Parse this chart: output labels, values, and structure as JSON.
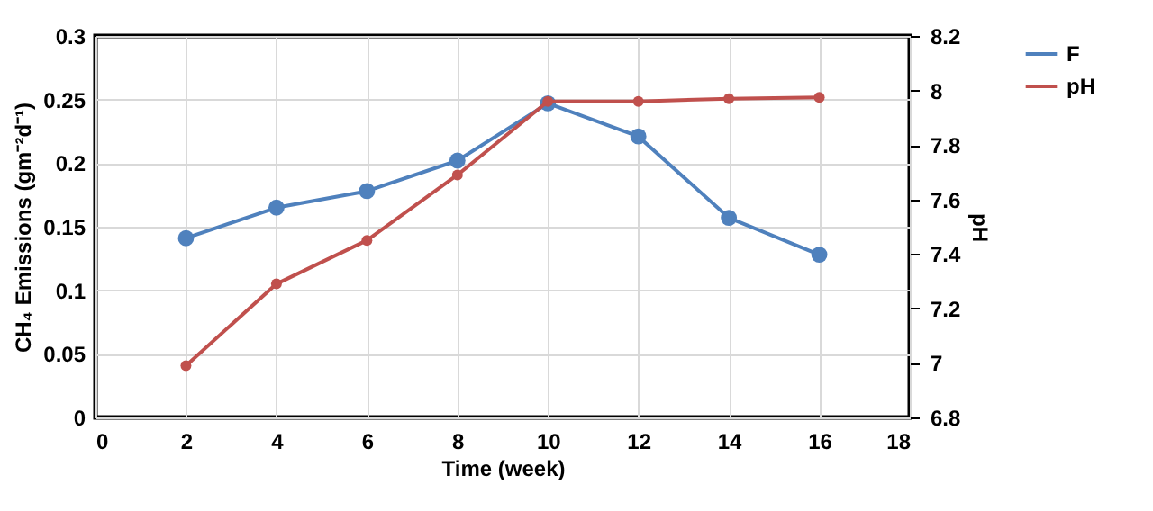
{
  "chart_data": {
    "type": "line",
    "xlabel": "Time (week)",
    "ylabel": "CH₄ Emissions (gm⁻²d⁻¹)",
    "y2label": "pH",
    "x": [
      2,
      4,
      6,
      8,
      10,
      12,
      14,
      16
    ],
    "xlim": [
      0,
      18
    ],
    "xticks": [
      0,
      2,
      4,
      6,
      8,
      10,
      12,
      14,
      16,
      18
    ],
    "ylim": [
      0,
      0.3
    ],
    "yticks": [
      0,
      0.05,
      0.1,
      0.15,
      0.2,
      0.25,
      0.3
    ],
    "y2lim": [
      6.8,
      8.2
    ],
    "y2ticks": [
      6.8,
      7,
      7.2,
      7.4,
      7.6,
      7.8,
      8,
      8.2
    ],
    "series": [
      {
        "name": "F",
        "color": "#4f81bd",
        "values": [
          0.141,
          0.165,
          0.178,
          0.202,
          0.247,
          0.221,
          0.157,
          0.128
        ]
      },
      {
        "name": "pH",
        "color": "#c0504d",
        "axis": "y2",
        "values": [
          6.99,
          7.29,
          7.45,
          7.69,
          7.96,
          7.96,
          7.97,
          7.975
        ]
      }
    ],
    "grid": true,
    "legend": "right",
    "marker": "circle",
    "line_style": "solid"
  }
}
